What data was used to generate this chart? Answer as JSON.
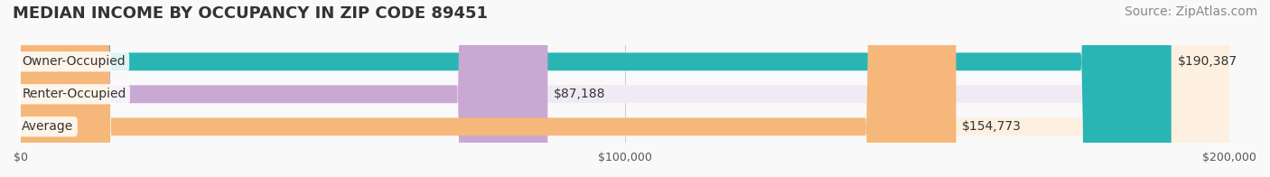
{
  "title": "MEDIAN INCOME BY OCCUPANCY IN ZIP CODE 89451",
  "source": "Source: ZipAtlas.com",
  "categories": [
    "Owner-Occupied",
    "Renter-Occupied",
    "Average"
  ],
  "values": [
    190387,
    87188,
    154773
  ],
  "labels": [
    "$190,387",
    "$87,188",
    "$154,773"
  ],
  "bar_colors": [
    "#2ab5b5",
    "#c9a8d4",
    "#f5b87a"
  ],
  "bar_bg_colors": [
    "#e0f5f5",
    "#f0eaf5",
    "#fdf0e0"
  ],
  "max_value": 200000,
  "xlim": [
    0,
    200000
  ],
  "xticks": [
    0,
    100000,
    200000
  ],
  "xtick_labels": [
    "$0",
    "$100,000",
    "$200,000"
  ],
  "title_fontsize": 13,
  "source_fontsize": 10,
  "label_fontsize": 10,
  "bar_height": 0.55,
  "figsize": [
    14.06,
    1.96
  ],
  "dpi": 100,
  "bg_color": "#f9f9f9",
  "bar_bg_color": "#f0f0f0"
}
